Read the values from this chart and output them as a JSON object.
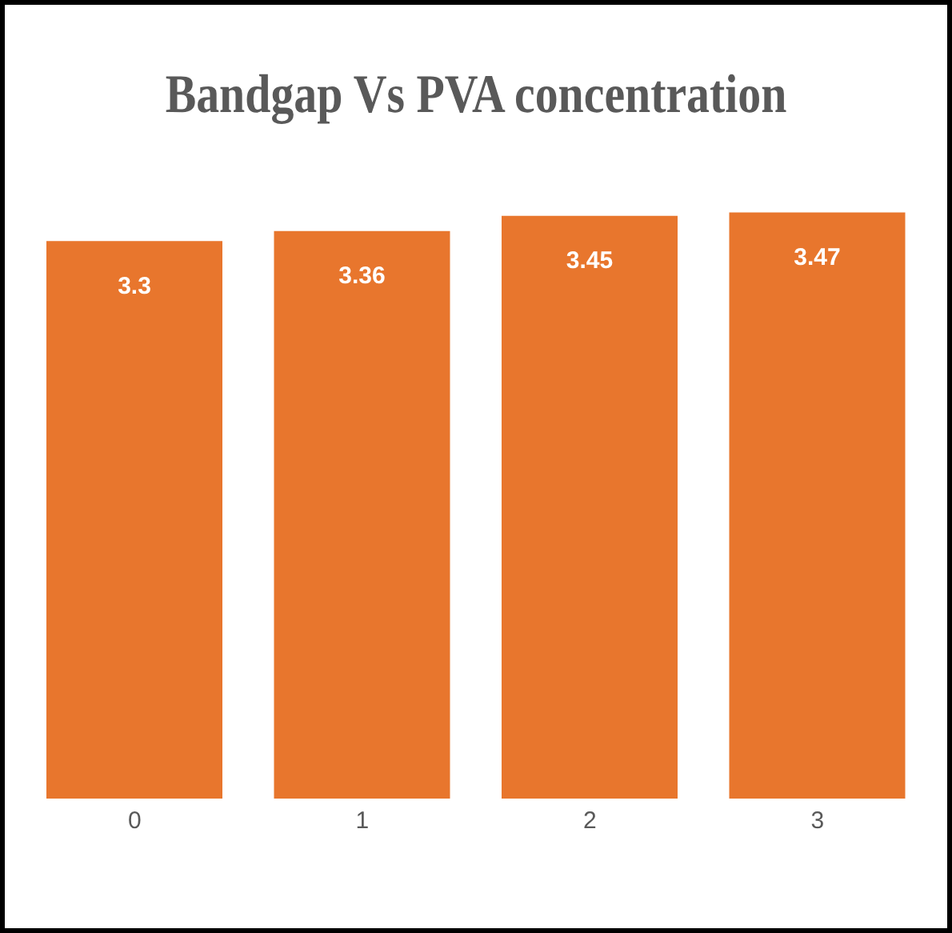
{
  "chart_data": {
    "type": "bar",
    "title": "Bandgap Vs PVA concentration",
    "categories": [
      "0",
      "1",
      "2",
      "3"
    ],
    "values": [
      3.3,
      3.36,
      3.45,
      3.47
    ],
    "color": "#e8762d",
    "data_labels": true
  }
}
